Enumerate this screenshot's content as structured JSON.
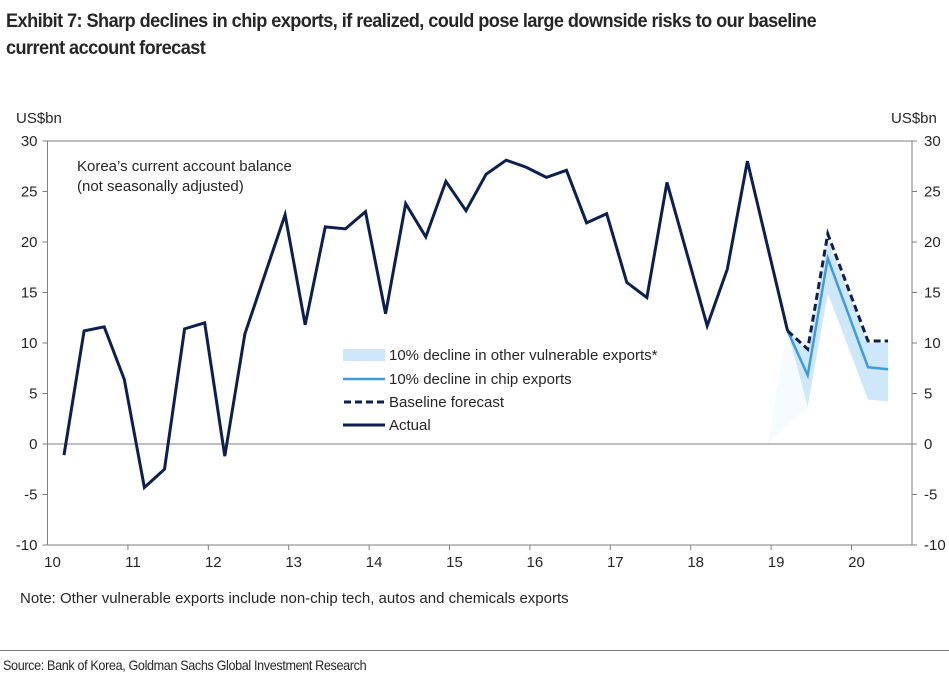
{
  "header": {
    "title_line1": "Exhibit 7: Sharp declines in chip exports, if realized, could pose large downside risks to our baseline",
    "title_line2": "current account forecast"
  },
  "footer": {
    "note": "Note: Other vulnerable exports include non-chip tech, autos and chemicals exports",
    "source": "Source: Bank of Korea, Goldman Sachs Global Investment Research"
  },
  "colors": {
    "actual": "#0c1f4f",
    "baseline": "#0c1f4f",
    "chip": "#3d9be0",
    "band": "#cfe7fa",
    "axis": "#7f7f7f"
  },
  "chart_data": {
    "type": "line",
    "title": "Exhibit 7: Sharp declines in chip exports, if realized, could pose large downside risks to our baseline current account forecast",
    "annotation_line1": "Korea’s current account balance",
    "annotation_line2": "(not seasonally adjusted)",
    "ylabel_left": "US$bn",
    "ylabel_right": "US$bn",
    "xlabel": "",
    "ylim": [
      -10,
      30
    ],
    "yticks": [
      -10,
      -5,
      0,
      5,
      10,
      15,
      20,
      25,
      30
    ],
    "xlim_years": [
      2010,
      2020.8
    ],
    "xticks": [
      {
        "year": 2010,
        "label": "10"
      },
      {
        "year": 2011,
        "label": "11"
      },
      {
        "year": 2012,
        "label": "12"
      },
      {
        "year": 2013,
        "label": "13"
      },
      {
        "year": 2014,
        "label": "14"
      },
      {
        "year": 2015,
        "label": "15"
      },
      {
        "year": 2016,
        "label": "16"
      },
      {
        "year": 2017,
        "label": "17"
      },
      {
        "year": 2018,
        "label": "18"
      },
      {
        "year": 2019,
        "label": "19"
      },
      {
        "year": 2020,
        "label": "20"
      }
    ],
    "grid": false,
    "frequency": "quarterly",
    "start_period": "2010Q1",
    "legend_position": "center",
    "legend": [
      {
        "key": "band",
        "label": "10% decline in other vulnerable exports*",
        "style": "area"
      },
      {
        "key": "chip",
        "label": "10% decline in chip exports",
        "style": "line"
      },
      {
        "key": "baseline",
        "label": "Baseline forecast",
        "style": "dashed"
      },
      {
        "key": "actual",
        "label": "Actual",
        "style": "line"
      }
    ],
    "series": [
      {
        "key": "actual",
        "name": "Actual",
        "start_index": 0,
        "values": [
          -1.1,
          11.2,
          11.6,
          6.4,
          -4.3,
          -2.5,
          11.4,
          12.0,
          -1.2,
          10.9,
          16.8,
          22.7,
          11.8,
          21.5,
          21.3,
          23.0,
          12.9,
          23.8,
          20.5,
          26.0,
          23.1,
          26.7,
          28.1,
          27.4,
          26.4,
          27.1,
          21.9,
          22.8,
          16.0,
          14.5,
          25.9,
          18.8,
          11.7,
          17.3,
          28.0,
          19.6,
          11.2
        ]
      },
      {
        "key": "baseline",
        "name": "Baseline forecast",
        "start_index": 36,
        "values": [
          11.2,
          9.4,
          20.8,
          15.5,
          10.2,
          10.2
        ]
      },
      {
        "key": "chip",
        "name": "10% decline in chip exports",
        "start_index": 36,
        "values": [
          11.2,
          6.8,
          18.4,
          13.0,
          7.6,
          7.4
        ]
      },
      {
        "key": "band",
        "name": "10% decline in other vulnerable exports*",
        "start_index": 36,
        "upper": [
          11.2,
          9.2,
          20.2,
          15.1,
          10.0,
          10.0
        ],
        "lower": [
          11.2,
          3.7,
          14.9,
          9.7,
          4.4,
          4.2
        ]
      }
    ]
  }
}
